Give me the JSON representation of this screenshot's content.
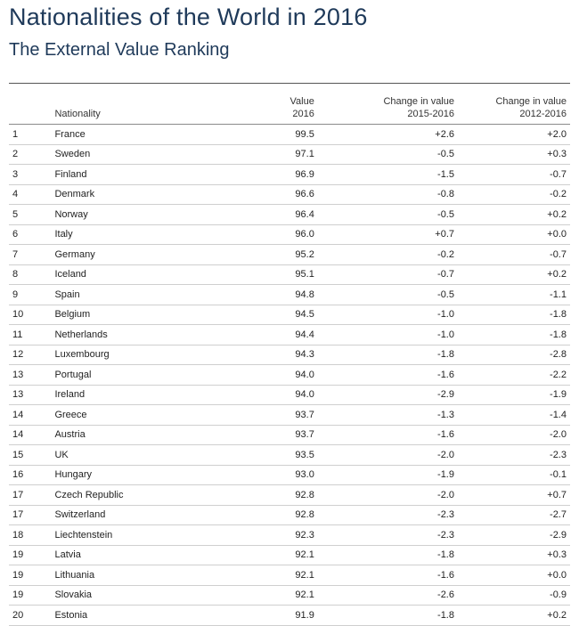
{
  "title": "Nationalities of the World in 2016",
  "subtitle": "The External Value Ranking",
  "headers": {
    "nationality": "Nationality",
    "value_l1": "Value",
    "value_l2": "2016",
    "change1_l1": "Change in value",
    "change1_l2": "2015-2016",
    "change2_l1": "Change in value",
    "change2_l2": "2012-2016"
  },
  "rows": [
    {
      "rank": "1",
      "nationality": "France",
      "value": "99.5",
      "change_1516": "+2.6",
      "change_1216": "+2.0"
    },
    {
      "rank": "2",
      "nationality": "Sweden",
      "value": "97.1",
      "change_1516": "-0.5",
      "change_1216": "+0.3"
    },
    {
      "rank": "3",
      "nationality": "Finland",
      "value": "96.9",
      "change_1516": "-1.5",
      "change_1216": "-0.7"
    },
    {
      "rank": "4",
      "nationality": "Denmark",
      "value": "96.6",
      "change_1516": "-0.8",
      "change_1216": "-0.2"
    },
    {
      "rank": "5",
      "nationality": "Norway",
      "value": "96.4",
      "change_1516": "-0.5",
      "change_1216": "+0.2"
    },
    {
      "rank": "6",
      "nationality": "Italy",
      "value": "96.0",
      "change_1516": "+0.7",
      "change_1216": "+0.0"
    },
    {
      "rank": "7",
      "nationality": "Germany",
      "value": "95.2",
      "change_1516": "-0.2",
      "change_1216": "-0.7"
    },
    {
      "rank": "8",
      "nationality": "Iceland",
      "value": "95.1",
      "change_1516": "-0.7",
      "change_1216": "+0.2"
    },
    {
      "rank": "9",
      "nationality": "Spain",
      "value": "94.8",
      "change_1516": "-0.5",
      "change_1216": "-1.1"
    },
    {
      "rank": "10",
      "nationality": "Belgium",
      "value": "94.5",
      "change_1516": "-1.0",
      "change_1216": "-1.8"
    },
    {
      "rank": "11",
      "nationality": "Netherlands",
      "value": "94.4",
      "change_1516": "-1.0",
      "change_1216": "-1.8"
    },
    {
      "rank": "12",
      "nationality": "Luxembourg",
      "value": "94.3",
      "change_1516": "-1.8",
      "change_1216": "-2.8"
    },
    {
      "rank": "13",
      "nationality": "Portugal",
      "value": "94.0",
      "change_1516": "-1.6",
      "change_1216": "-2.2"
    },
    {
      "rank": "13",
      "nationality": "Ireland",
      "value": "94.0",
      "change_1516": "-2.9",
      "change_1216": "-1.9"
    },
    {
      "rank": "14",
      "nationality": "Greece",
      "value": "93.7",
      "change_1516": "-1.3",
      "change_1216": "-1.4"
    },
    {
      "rank": "14",
      "nationality": "Austria",
      "value": "93.7",
      "change_1516": "-1.6",
      "change_1216": "-2.0"
    },
    {
      "rank": "15",
      "nationality": "UK",
      "value": "93.5",
      "change_1516": "-2.0",
      "change_1216": "-2.3"
    },
    {
      "rank": "16",
      "nationality": "Hungary",
      "value": "93.0",
      "change_1516": "-1.9",
      "change_1216": "-0.1"
    },
    {
      "rank": "17",
      "nationality": "Czech Republic",
      "value": "92.8",
      "change_1516": "-2.0",
      "change_1216": "+0.7"
    },
    {
      "rank": "17",
      "nationality": "Switzerland",
      "value": "92.8",
      "change_1516": "-2.3",
      "change_1216": "-2.7"
    },
    {
      "rank": "18",
      "nationality": "Liechtenstein",
      "value": "92.3",
      "change_1516": "-2.3",
      "change_1216": "-2.9"
    },
    {
      "rank": "19",
      "nationality": "Latvia",
      "value": "92.1",
      "change_1516": "-1.8",
      "change_1216": "+0.3"
    },
    {
      "rank": "19",
      "nationality": "Lithuania",
      "value": "92.1",
      "change_1516": "-1.6",
      "change_1216": "+0.0"
    },
    {
      "rank": "19",
      "nationality": "Slovakia",
      "value": "92.1",
      "change_1516": "-2.6",
      "change_1216": "-0.9"
    },
    {
      "rank": "20",
      "nationality": "Estonia",
      "value": "91.9",
      "change_1516": "-1.8",
      "change_1216": "+0.2"
    }
  ]
}
